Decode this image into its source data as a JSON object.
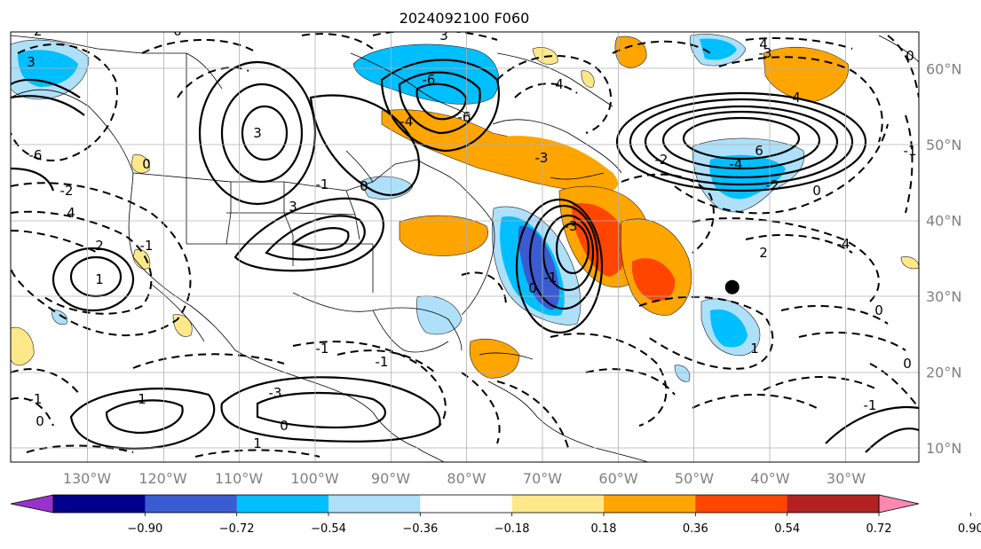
{
  "title": "2024092100 F060",
  "map": {
    "lon_labels": [
      "130°W",
      "120°W",
      "110°W",
      "100°W",
      "90°W",
      "80°W",
      "70°W",
      "60°W",
      "50°W",
      "40°W",
      "30°W"
    ],
    "lat_labels": [
      "60°N",
      "50°N",
      "40°N",
      "30°N",
      "20°N",
      "10°N"
    ],
    "contour_labels": [
      "-2",
      "0",
      "3",
      "4",
      "-6",
      "3",
      "-6",
      "4",
      "-3",
      "0",
      "4",
      "-6",
      "-4",
      "-3",
      "-4",
      "-1",
      "6",
      "-2",
      "4",
      "-2",
      "-2",
      "0",
      "-3",
      "-4",
      "2",
      "3",
      "3",
      "-1",
      "0",
      "0",
      "-1",
      "0",
      "2",
      "1",
      "-1",
      "1",
      "-1",
      "-1",
      "0",
      "0",
      "-1",
      "0",
      "-1",
      "1",
      "-3",
      "0",
      "1"
    ],
    "marker": {
      "lon": -45,
      "lat": 31.2
    }
  },
  "colorbar": {
    "ticks": [
      "−0.90",
      "−0.72",
      "−0.54",
      "−0.36",
      "−0.18",
      "0.18",
      "0.36",
      "0.54",
      "0.72",
      "0.90"
    ],
    "colors": [
      "#9932cc",
      "#00008b",
      "#3a5bd2",
      "#00bfff",
      "#aee0fa",
      "#ffffff",
      "#ffe88a",
      "#ffa500",
      "#ff4500",
      "#b22222",
      "#ff88b0"
    ]
  },
  "colors": {
    "neg_strong": "#3a5bd2",
    "neg_mid": "#00bfff",
    "neg_light": "#aee0fa",
    "pos_light": "#ffe88a",
    "pos_mid": "#ffa500",
    "pos_strong": "#ff4500",
    "grid": "#b0b0b0",
    "label_gray": "#808080"
  }
}
